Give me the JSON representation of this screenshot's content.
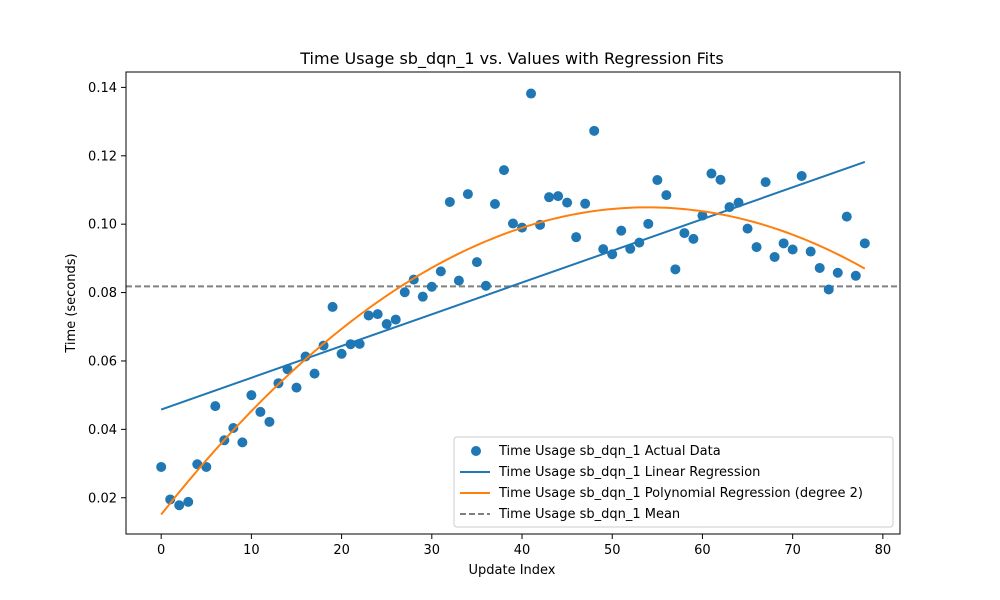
{
  "chart_data": {
    "type": "scatter",
    "title": "Time Usage sb_dqn_1 vs. Values with Regression Fits",
    "xlabel": "Update Index",
    "ylabel": "Time (seconds)",
    "xlim": [
      -3.9,
      81.9
    ],
    "ylim": [
      0.0094,
      0.1445
    ],
    "xticks": [
      0,
      10,
      20,
      30,
      40,
      50,
      60,
      70,
      80
    ],
    "yticks": [
      0.02,
      0.04,
      0.06,
      0.08,
      0.1,
      0.12,
      0.14
    ],
    "xtick_labels": [
      "0",
      "10",
      "20",
      "30",
      "40",
      "50",
      "60",
      "70",
      "80"
    ],
    "ytick_labels": [
      "0.02",
      "0.04",
      "0.06",
      "0.08",
      "0.10",
      "0.12",
      "0.14"
    ],
    "grid": false,
    "legend_position": "lower-right",
    "colors": {
      "scatter": "#1f77b4",
      "linear": "#1f77b4",
      "poly": "#ff7f0e",
      "mean": "#808080"
    },
    "series": [
      {
        "name": "Time Usage sb_dqn_1 Actual Data",
        "kind": "scatter",
        "x": [
          0,
          1,
          2,
          3,
          4,
          5,
          6,
          7,
          8,
          9,
          10,
          11,
          12,
          13,
          14,
          15,
          16,
          17,
          18,
          19,
          20,
          21,
          22,
          23,
          24,
          25,
          26,
          27,
          28,
          29,
          30,
          31,
          32,
          33,
          34,
          35,
          36,
          37,
          38,
          39,
          40,
          41,
          42,
          43,
          44,
          45,
          46,
          47,
          48,
          49,
          50,
          51,
          52,
          53,
          54,
          55,
          56,
          57,
          58,
          59,
          60,
          61,
          62,
          63,
          64,
          65,
          66,
          67,
          68,
          69,
          70,
          71,
          72,
          73,
          74,
          75,
          76,
          77,
          78
        ],
        "y": [
          0.029,
          0.0195,
          0.0178,
          0.0188,
          0.0298,
          0.029,
          0.0468,
          0.0368,
          0.0404,
          0.0362,
          0.05,
          0.0451,
          0.0422,
          0.0535,
          0.0576,
          0.0522,
          0.0613,
          0.0563,
          0.0645,
          0.0758,
          0.0621,
          0.0649,
          0.065,
          0.0733,
          0.0737,
          0.0708,
          0.0721,
          0.0801,
          0.0838,
          0.0788,
          0.0817,
          0.0862,
          0.1065,
          0.0835,
          0.1088,
          0.0889,
          0.082,
          0.1059,
          0.1158,
          0.1002,
          0.099,
          0.1382,
          0.0998,
          0.1079,
          0.1082,
          0.1063,
          0.0962,
          0.106,
          0.1273,
          0.0927,
          0.0912,
          0.0981,
          0.0928,
          0.0946,
          0.1001,
          0.1129,
          0.1085,
          0.0868,
          0.0974,
          0.0957,
          0.1025,
          0.1148,
          0.113,
          0.105,
          0.1063,
          0.0987,
          0.0933,
          0.1123,
          0.0904,
          0.0944,
          0.0926,
          0.1141,
          0.092,
          0.0872,
          0.0809,
          0.0858,
          0.1022,
          0.0849,
          0.0944
        ]
      },
      {
        "name": "Time Usage sb_dqn_1 Linear Regression",
        "kind": "line",
        "x": [
          0,
          78
        ],
        "y": [
          0.0458,
          0.1182
        ]
      },
      {
        "name": "Time Usage sb_dqn_1 Polynomial Regression (degree 2)",
        "kind": "curve",
        "coefficients": {
          "a": -3.09e-05,
          "b": 0.003332,
          "c": 0.0151
        },
        "x_range": [
          0,
          78
        ]
      },
      {
        "name": "Time Usage sb_dqn_1 Mean",
        "kind": "hline",
        "y": 0.0818
      }
    ]
  }
}
